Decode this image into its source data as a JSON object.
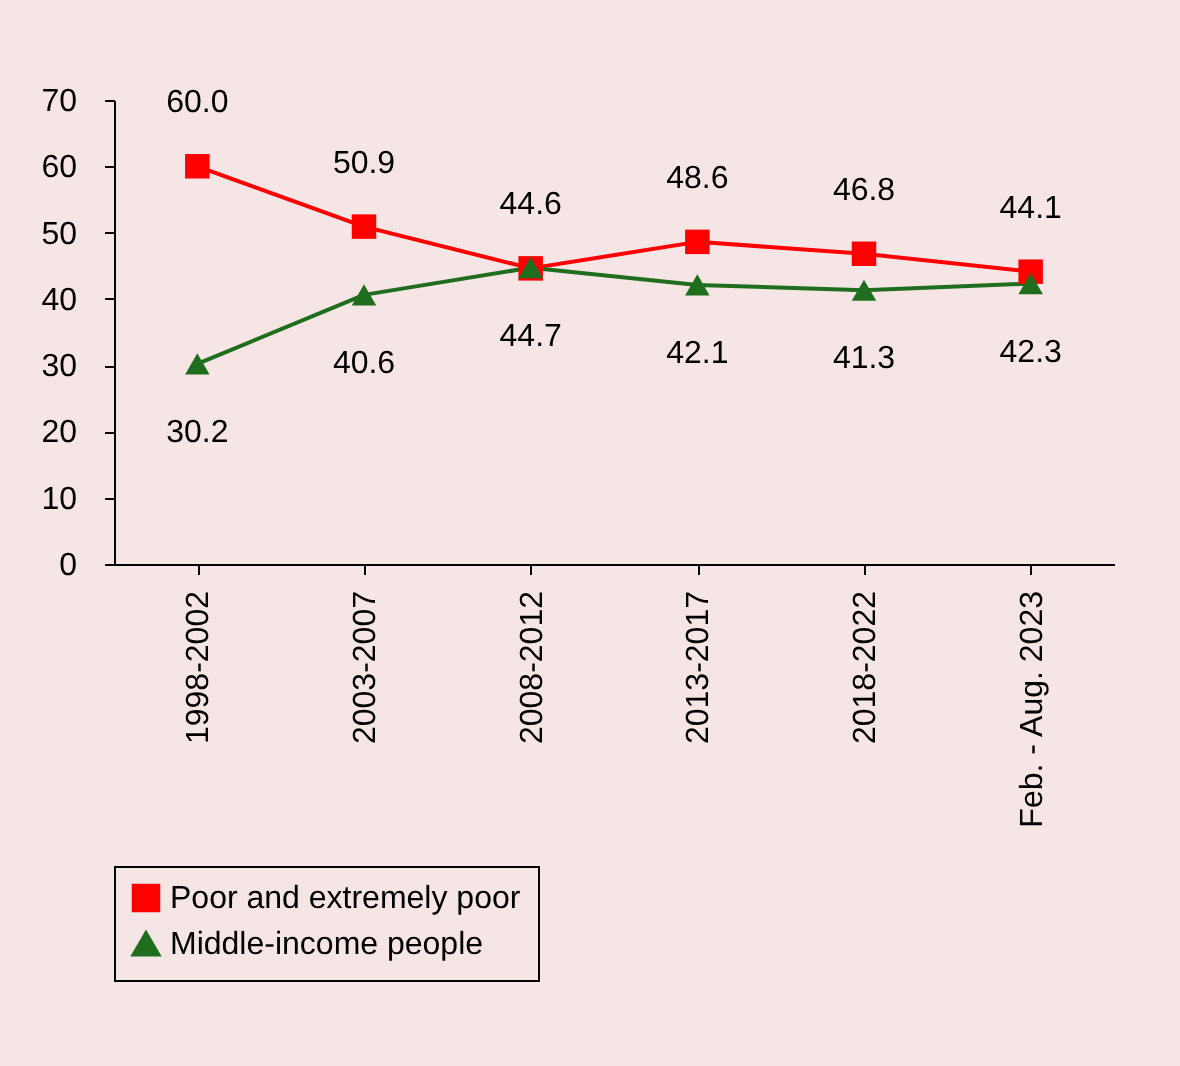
{
  "chart_data": {
    "type": "line",
    "categories": [
      "1998-2002",
      "2003-2007",
      "2008-2012",
      "2013-2017",
      "2018-2022",
      "Feb. - Aug. 2023"
    ],
    "series": [
      {
        "name": "Poor and extremely poor",
        "color": "#ff0000",
        "marker": "square",
        "values": [
          60.0,
          50.9,
          44.6,
          48.6,
          46.8,
          44.1
        ],
        "value_labels": [
          "60.0",
          "50.9",
          "44.6",
          "48.6",
          "46.8",
          "44.1"
        ]
      },
      {
        "name": "Middle-income people",
        "color": "#1e6e1e",
        "marker": "triangle",
        "values": [
          30.2,
          40.6,
          44.7,
          42.1,
          41.3,
          42.3
        ],
        "value_labels": [
          "30.2",
          "40.6",
          "44.7",
          "42.1",
          "41.3",
          "42.3"
        ]
      }
    ],
    "ylim": [
      0,
      70
    ],
    "yticks": [
      0,
      10,
      20,
      30,
      40,
      50,
      60,
      70
    ],
    "grid": false,
    "legend": "bottom"
  }
}
